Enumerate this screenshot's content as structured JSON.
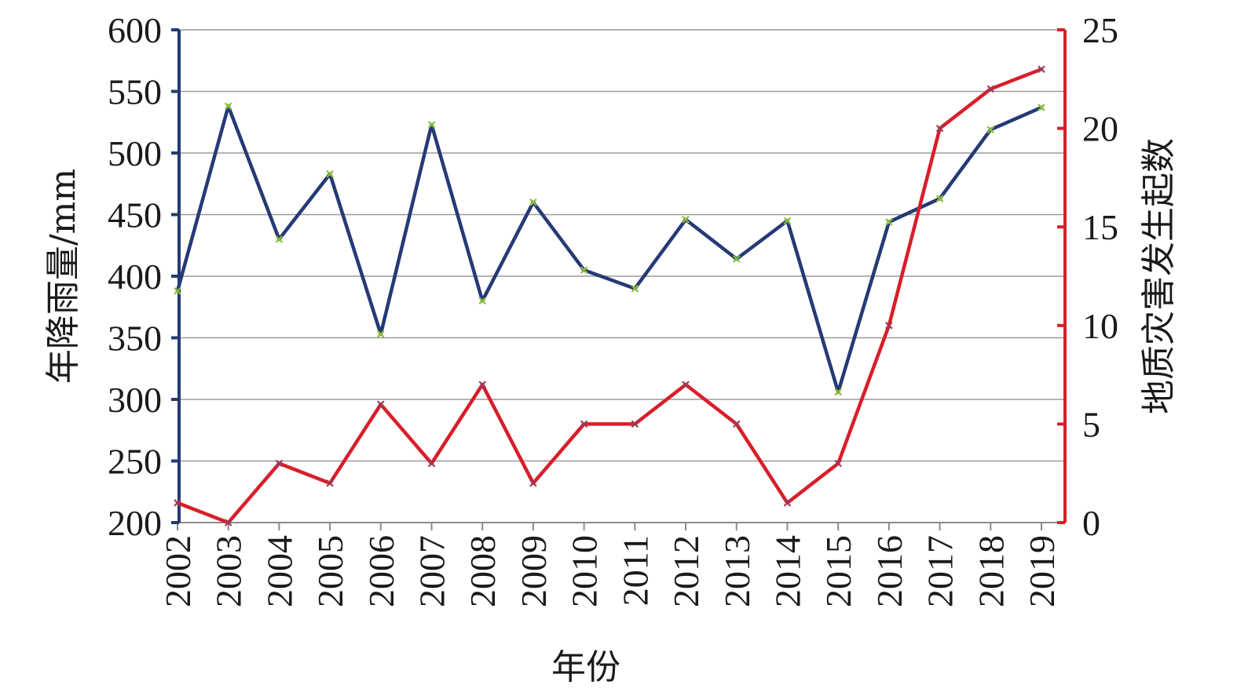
{
  "chart_data": {
    "type": "line",
    "x": [
      "2002",
      "2003",
      "2004",
      "2005",
      "2006",
      "2007",
      "2008",
      "2009",
      "2010",
      "2011",
      "2012",
      "2013",
      "2014",
      "2015",
      "2016",
      "2017",
      "2018",
      "2019"
    ],
    "xlabel": "年份",
    "ylabel_left": "年降雨量/mm",
    "ylabel_right": "地质灾害发生起数",
    "ylim_left": [
      200,
      600
    ],
    "yticks_left": [
      200,
      250,
      300,
      350,
      400,
      450,
      500,
      550,
      600
    ],
    "ylim_right": [
      0,
      25
    ],
    "yticks_right": [
      0,
      5,
      10,
      15,
      20,
      25
    ],
    "grid": true,
    "series": [
      {
        "axis": "left",
        "color": "#253a75",
        "marker_color": "#8bbf3a",
        "values": [
          388,
          538,
          430,
          483,
          353,
          523,
          380,
          460,
          405,
          390,
          446,
          414,
          445,
          306,
          444,
          463,
          519,
          537
        ]
      },
      {
        "axis": "right",
        "color": "#d81e2a",
        "marker_color": "#9a3a58",
        "values": [
          1,
          0,
          3,
          2,
          6,
          3,
          7,
          2,
          5,
          5,
          7,
          5,
          1,
          3,
          10,
          20,
          22,
          23
        ]
      }
    ]
  }
}
